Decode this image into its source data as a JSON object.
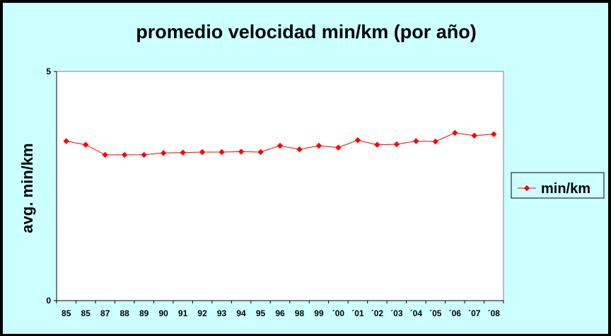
{
  "chart_data": {
    "type": "line",
    "title": "promedio velocidad min/km (por año)",
    "xlabel": "",
    "ylabel": "avg. min/km",
    "ylim": [
      0,
      5
    ],
    "y_ticks": [
      "0",
      "5"
    ],
    "categories": [
      "85",
      "85",
      "87",
      "88",
      "89",
      "90",
      "91",
      "92",
      "93",
      "94",
      "95",
      "96",
      "98",
      "99",
      "´00",
      "´01",
      "´02",
      "´03",
      "´04",
      "´05",
      "´06",
      "´07",
      "´08"
    ],
    "series": [
      {
        "name": "min/km",
        "color": "#ff0000",
        "values": [
          3.48,
          3.4,
          3.18,
          3.18,
          3.18,
          3.22,
          3.23,
          3.24,
          3.24,
          3.25,
          3.24,
          3.38,
          3.3,
          3.38,
          3.34,
          3.5,
          3.4,
          3.41,
          3.48,
          3.47,
          3.66,
          3.6,
          3.63
        ]
      }
    ],
    "grid": false,
    "legend": "right",
    "plot_background": "#ffffff",
    "chart_background": "#ccffff"
  }
}
